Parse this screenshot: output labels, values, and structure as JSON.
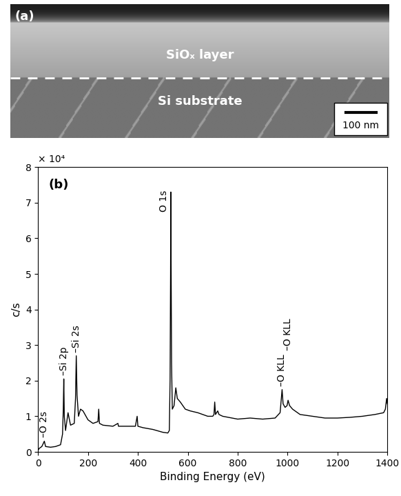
{
  "panel_a": {
    "label": "(a)",
    "texts": [
      "SiOₓ layer",
      "Si substrate"
    ],
    "scale_bar": "100 nm"
  },
  "chart_data": {
    "type": "line",
    "color": "#000000",
    "xlabel": "Binding Energy (eV)",
    "ylabel": "c/s",
    "annotations": [
      "(b)",
      "× 10⁴"
    ],
    "x": [
      0,
      5,
      15,
      25,
      30,
      50,
      70,
      90,
      98,
      101,
      103,
      105,
      110,
      115,
      120,
      130,
      145,
      150,
      153,
      156,
      162,
      170,
      180,
      200,
      220,
      240,
      243,
      246,
      260,
      300,
      320,
      322,
      350,
      390,
      397,
      400,
      420,
      460,
      500,
      520,
      526,
      529,
      531,
      532,
      533,
      535,
      538,
      545,
      552,
      558,
      570,
      590,
      610,
      640,
      680,
      700,
      705,
      708,
      711,
      720,
      725,
      740,
      800,
      850,
      900,
      950,
      970,
      975,
      978,
      982,
      990,
      998,
      1002,
      1008,
      1020,
      1050,
      1100,
      1150,
      1200,
      1250,
      1300,
      1350,
      1385,
      1392,
      1397,
      1400
    ],
    "values": [
      0.05,
      0.1,
      0.15,
      0.3,
      0.15,
      0.13,
      0.15,
      0.2,
      0.5,
      1.2,
      2.05,
      1.0,
      0.6,
      0.85,
      1.1,
      0.75,
      0.8,
      1.5,
      2.7,
      1.6,
      1.0,
      1.2,
      1.15,
      0.9,
      0.8,
      0.85,
      1.2,
      0.8,
      0.75,
      0.72,
      0.8,
      0.72,
      0.72,
      0.72,
      1.0,
      0.72,
      0.68,
      0.63,
      0.55,
      0.53,
      0.6,
      2.0,
      5.0,
      7.3,
      5.5,
      2.5,
      1.2,
      1.3,
      1.8,
      1.5,
      1.4,
      1.2,
      1.15,
      1.1,
      1.0,
      1.0,
      1.05,
      1.4,
      1.05,
      1.15,
      1.05,
      1.0,
      0.92,
      0.95,
      0.92,
      0.95,
      1.1,
      1.5,
      1.75,
      1.35,
      1.25,
      1.3,
      1.45,
      1.3,
      1.2,
      1.05,
      1.0,
      0.95,
      0.95,
      0.97,
      1.0,
      1.05,
      1.1,
      1.2,
      1.5,
      1.35
    ],
    "peaks": [
      {
        "label": "–O 2s",
        "x": 25
      },
      {
        "label": "–Si 2p",
        "x": 103
      },
      {
        "label": "–Si 2s",
        "x": 153
      },
      {
        "label": "O 1s",
        "x": 532
      },
      {
        "label": "–O KLL",
        "x": 978
      },
      {
        "label": "–O KLL",
        "x": 1002
      }
    ],
    "xlim": [
      0,
      1400
    ],
    "xticks": [
      0,
      200,
      400,
      600,
      800,
      1000,
      1200,
      1400
    ],
    "ylim": [
      0,
      8
    ],
    "yticks": [
      0,
      1,
      2,
      3,
      4,
      5,
      6,
      7,
      8
    ]
  }
}
